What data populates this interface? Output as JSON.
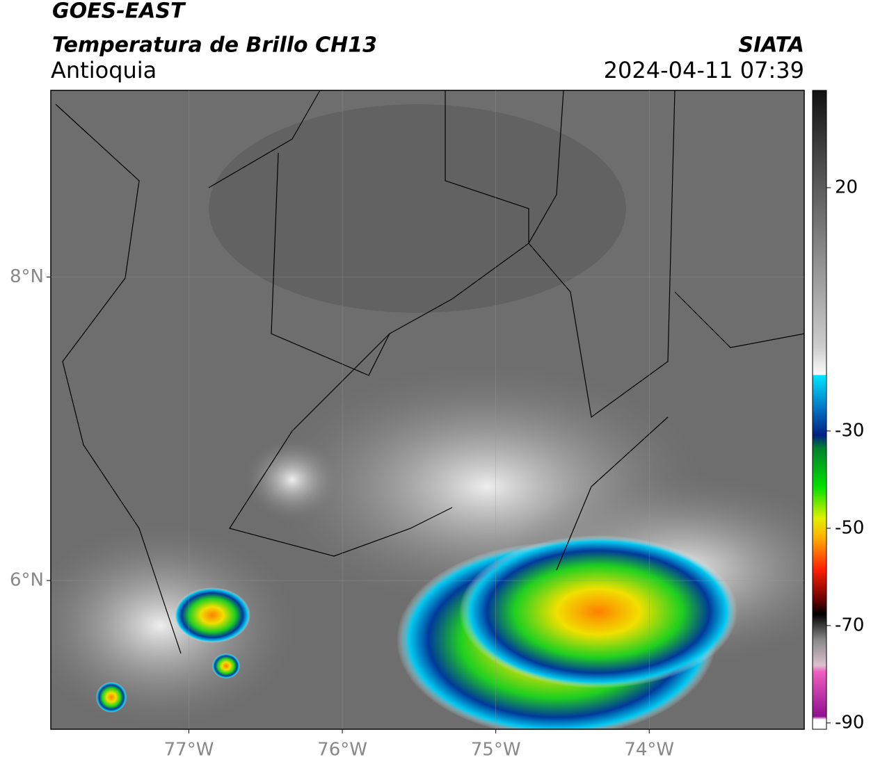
{
  "header": {
    "satellite": "GOES-EAST",
    "product": "Temperatura de Brillo CH13",
    "region": "Antioquia",
    "agency": "SIATA",
    "datetime": "2024-04-11 07:39"
  },
  "map": {
    "xlim": [
      -77.9,
      -72.99
    ],
    "ylim": [
      5.02,
      9.23
    ],
    "xticks": [
      {
        "value": -77,
        "label": "77°W"
      },
      {
        "value": -76,
        "label": "76°W"
      },
      {
        "value": -75,
        "label": "75°W"
      },
      {
        "value": -74,
        "label": "74°W"
      }
    ],
    "yticks": [
      {
        "value": 8,
        "label": "8°N"
      },
      {
        "value": 6,
        "label": "6°N"
      }
    ],
    "grid": true
  },
  "colorbar": {
    "lim": [
      -91.3,
      40
    ],
    "ticks": [
      20,
      -30,
      -50,
      -70,
      -90
    ]
  }
}
